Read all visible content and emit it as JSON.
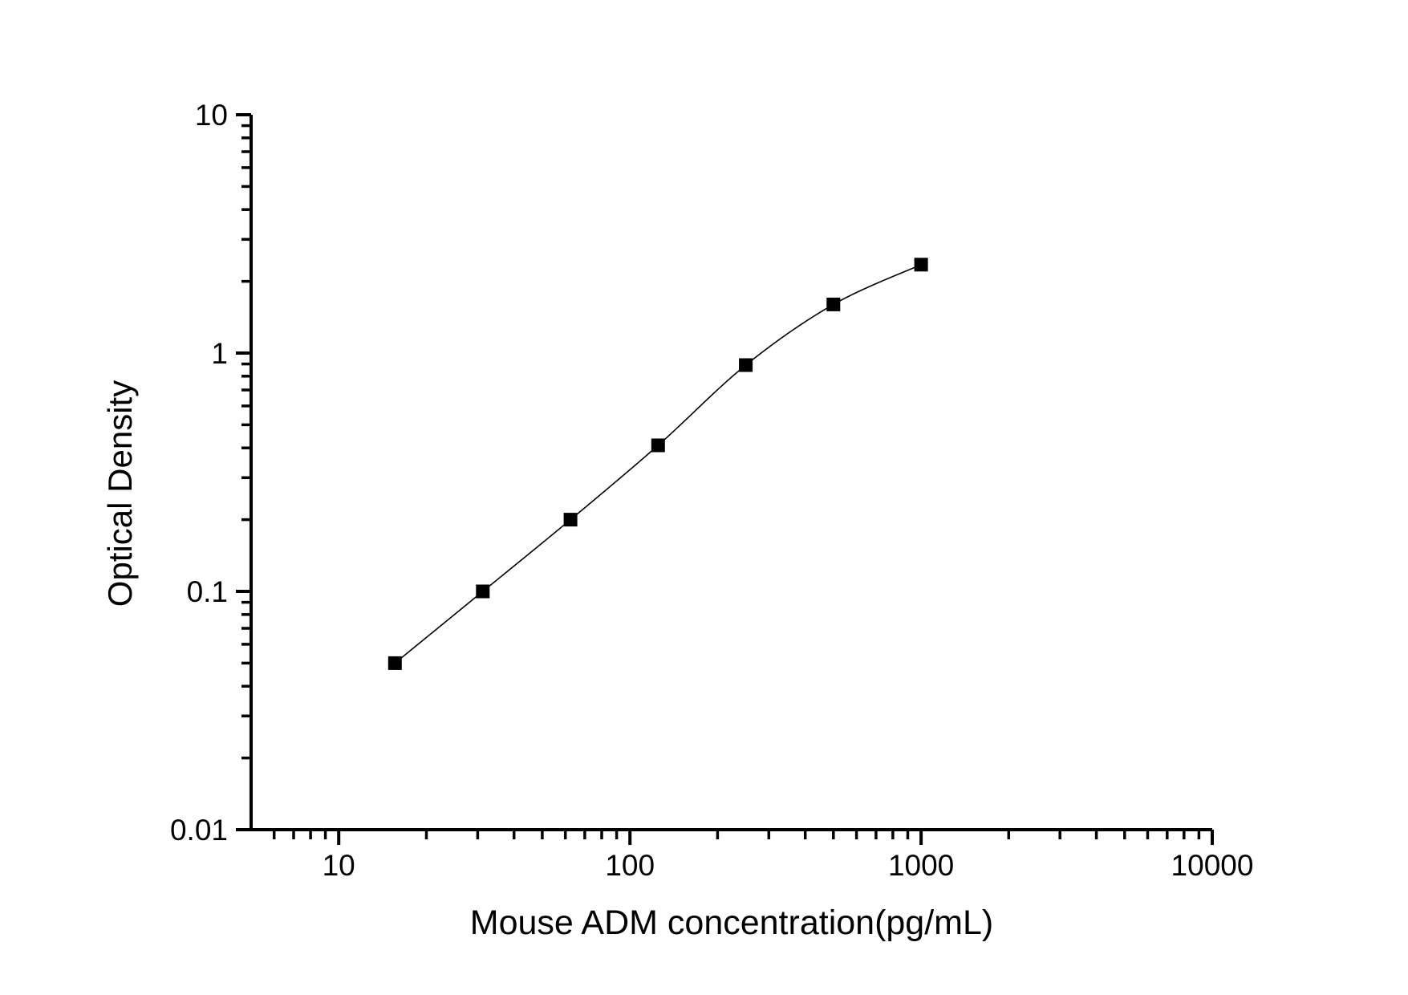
{
  "figure": {
    "background_color": "#ffffff",
    "axis_color": "#000000"
  },
  "chart_data": {
    "type": "scatter",
    "title": "",
    "xlabel": "Mouse ADM concentration(pg/mL)",
    "ylabel": "Optical Density",
    "x_scale": "log",
    "y_scale": "log",
    "xlim": [
      5,
      10000
    ],
    "ylim": [
      0.01,
      10
    ],
    "x_major_ticks": [
      10,
      100,
      1000,
      10000
    ],
    "x_tick_labels": [
      "10",
      "100",
      "1000",
      "10000"
    ],
    "y_major_ticks": [
      0.01,
      0.1,
      1,
      10
    ],
    "y_tick_labels": [
      "0.01",
      "0.1",
      "1",
      "10"
    ],
    "grid": false,
    "legend": false,
    "series": [
      {
        "marker": "square",
        "color": "#000000",
        "line": "smooth",
        "x": [
          15.6,
          31.25,
          62.5,
          125,
          250,
          500,
          1000
        ],
        "y": [
          0.05,
          0.1,
          0.2,
          0.41,
          0.89,
          1.6,
          2.35
        ]
      }
    ]
  }
}
